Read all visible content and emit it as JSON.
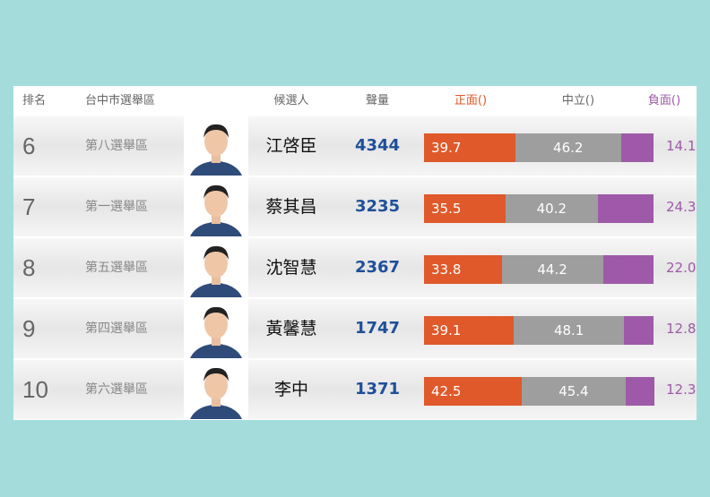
{
  "headers": {
    "rank": "排名",
    "district": "台中市選舉區",
    "candidate": "候選人",
    "volume": "聲量",
    "positive": "正面()",
    "neutral": "中立()",
    "negative": "負面()"
  },
  "colors": {
    "positive": "#e0592a",
    "neutral": "#9e9e9e",
    "negative": "#9e5aa8",
    "volume": "#1f4f9a",
    "background": "#a4dcdc"
  },
  "chart_data": {
    "type": "bar",
    "stacked": true,
    "orientation": "horizontal",
    "xlim": [
      0,
      100
    ],
    "categories": [
      "江啓臣",
      "蔡其昌",
      "沈智慧",
      "黃馨慧",
      "李中"
    ],
    "ranks": [
      "6",
      "7",
      "8",
      "9",
      "10"
    ],
    "districts": [
      "第八選舉區",
      "第一選舉區",
      "第五選舉區",
      "第四選舉區",
      "第六選舉區"
    ],
    "volumes": [
      "4344",
      "3235",
      "2367",
      "1747",
      "1371"
    ],
    "series": [
      {
        "name": "正面()",
        "values": [
          39.7,
          35.5,
          33.8,
          39.1,
          42.5
        ],
        "labels": [
          "39.7",
          "35.5",
          "33.8",
          "39.1",
          "42.5"
        ]
      },
      {
        "name": "中立()",
        "values": [
          46.2,
          40.2,
          44.2,
          48.1,
          45.4
        ],
        "labels": [
          "46.2",
          "40.2",
          "44.2",
          "48.1",
          "45.4"
        ]
      },
      {
        "name": "負面()",
        "values": [
          14.1,
          24.3,
          22.0,
          12.8,
          12.3
        ],
        "labels": [
          "14.1",
          "24.3",
          "22.0",
          "12.8",
          "12.3"
        ]
      }
    ]
  }
}
